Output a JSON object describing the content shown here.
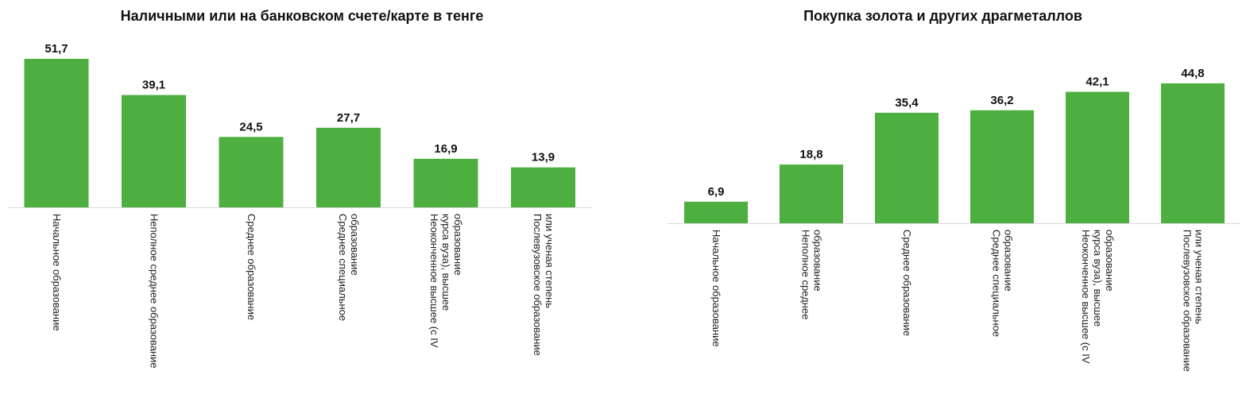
{
  "accent_color": "#4daf3f",
  "axis_color": "#d9d9d9",
  "chart_data": [
    {
      "type": "bar",
      "title": "Наличными или на банковском счете/карте в тенге",
      "categories": [
        "Начальное образование",
        "Неполное среднее образование",
        "Среднее образование",
        "Среднее специальное образование",
        "Неоконченное высшее (с IV курса вуза), высшее образование",
        "Послевузовское образование или ученая степень"
      ],
      "category_lines": [
        [
          "Начальное образование"
        ],
        [
          "Неполное среднее образование"
        ],
        [
          "Среднее образование"
        ],
        [
          "Среднее специальное",
          "образование"
        ],
        [
          "Неоконченное высшее (с IV",
          "курса вуза), высшее",
          "образование"
        ],
        [
          "Послевузовское образование",
          "или ученая степень"
        ]
      ],
      "values": [
        51.7,
        39.1,
        24.5,
        27.7,
        16.9,
        13.9
      ],
      "value_labels": [
        "51,7",
        "39,1",
        "24,5",
        "27,7",
        "16,9",
        "13,9"
      ],
      "ylim": [
        0,
        52
      ],
      "grid": false,
      "legend": "none"
    },
    {
      "type": "bar",
      "title": "Покупка золота и других драгметаллов",
      "categories": [
        "Начальное образование",
        "Неполное среднее образование",
        "Среднее образование",
        "Среднее специальное образование",
        "Неоконченное высшее (с IV курса вуза), высшее образование",
        "Послевузовское образование или ученая степень"
      ],
      "category_lines": [
        [
          "Начальное образование"
        ],
        [
          "Неполное среднее",
          "образование"
        ],
        [
          "Среднее образование"
        ],
        [
          "Среднее специальное",
          "образование"
        ],
        [
          "Неоконченное высшее (с IV",
          "курса вуза), высшее",
          "образование"
        ],
        [
          "Послевузовское образование",
          "или ученая степень"
        ]
      ],
      "values": [
        6.9,
        18.8,
        35.4,
        36.2,
        42.1,
        44.8
      ],
      "value_labels": [
        "6,9",
        "18,8",
        "35,4",
        "36,2",
        "42,1",
        "44,8"
      ],
      "ylim": [
        0,
        45
      ],
      "grid": false,
      "legend": "none"
    }
  ]
}
